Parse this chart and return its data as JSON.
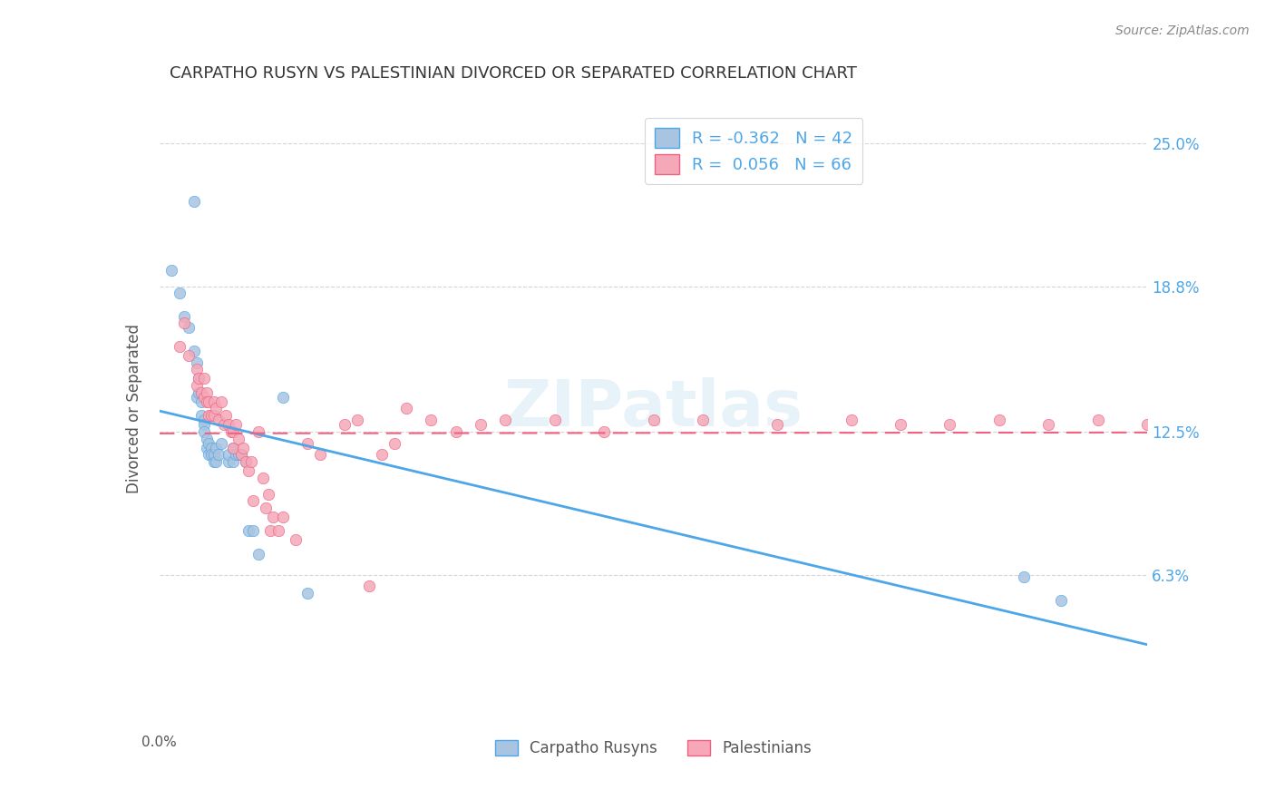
{
  "title": "CARPATHO RUSYN VS PALESTINIAN DIVORCED OR SEPARATED CORRELATION CHART",
  "source": "Source: ZipAtlas.com",
  "ylabel": "Divorced or Separated",
  "ytick_labels": [
    "25.0%",
    "18.8%",
    "12.5%",
    "6.3%"
  ],
  "ytick_values": [
    0.25,
    0.188,
    0.125,
    0.063
  ],
  "xmin": 0.0,
  "xmax": 0.4,
  "ymin": 0.0,
  "ymax": 0.27,
  "legend_blue_r": "-0.362",
  "legend_blue_n": "42",
  "legend_pink_r": "0.056",
  "legend_pink_n": "66",
  "blue_color": "#a8c4e0",
  "pink_color": "#f4a8b8",
  "line_blue": "#4da6e8",
  "line_pink": "#f06080",
  "watermark": "ZIPatlas",
  "blue_scatter_x": [
    0.005,
    0.008,
    0.01,
    0.012,
    0.014,
    0.014,
    0.015,
    0.015,
    0.016,
    0.016,
    0.017,
    0.017,
    0.018,
    0.018,
    0.018,
    0.019,
    0.019,
    0.02,
    0.02,
    0.021,
    0.021,
    0.022,
    0.022,
    0.023,
    0.023,
    0.024,
    0.025,
    0.028,
    0.028,
    0.03,
    0.03,
    0.031,
    0.032,
    0.033,
    0.035,
    0.036,
    0.038,
    0.04,
    0.05,
    0.06,
    0.35,
    0.365
  ],
  "blue_scatter_y": [
    0.195,
    0.185,
    0.175,
    0.17,
    0.225,
    0.16,
    0.155,
    0.14,
    0.148,
    0.142,
    0.138,
    0.132,
    0.13,
    0.128,
    0.125,
    0.122,
    0.118,
    0.12,
    0.115,
    0.118,
    0.115,
    0.112,
    0.115,
    0.118,
    0.112,
    0.115,
    0.12,
    0.112,
    0.115,
    0.118,
    0.112,
    0.115,
    0.115,
    0.115,
    0.112,
    0.082,
    0.082,
    0.072,
    0.14,
    0.055,
    0.062,
    0.052
  ],
  "pink_scatter_x": [
    0.008,
    0.01,
    0.012,
    0.015,
    0.015,
    0.016,
    0.017,
    0.018,
    0.018,
    0.019,
    0.019,
    0.02,
    0.02,
    0.021,
    0.022,
    0.022,
    0.023,
    0.024,
    0.025,
    0.026,
    0.027,
    0.028,
    0.029,
    0.03,
    0.03,
    0.031,
    0.032,
    0.033,
    0.034,
    0.035,
    0.036,
    0.037,
    0.038,
    0.04,
    0.042,
    0.043,
    0.044,
    0.045,
    0.046,
    0.048,
    0.05,
    0.055,
    0.06,
    0.065,
    0.075,
    0.08,
    0.085,
    0.09,
    0.095,
    0.1,
    0.11,
    0.12,
    0.13,
    0.14,
    0.16,
    0.18,
    0.2,
    0.22,
    0.25,
    0.28,
    0.3,
    0.32,
    0.34,
    0.36,
    0.38,
    0.4
  ],
  "pink_scatter_y": [
    0.162,
    0.172,
    0.158,
    0.152,
    0.145,
    0.148,
    0.142,
    0.148,
    0.14,
    0.142,
    0.138,
    0.138,
    0.132,
    0.132,
    0.138,
    0.132,
    0.135,
    0.13,
    0.138,
    0.128,
    0.132,
    0.128,
    0.125,
    0.125,
    0.118,
    0.128,
    0.122,
    0.115,
    0.118,
    0.112,
    0.108,
    0.112,
    0.095,
    0.125,
    0.105,
    0.092,
    0.098,
    0.082,
    0.088,
    0.082,
    0.088,
    0.078,
    0.12,
    0.115,
    0.128,
    0.13,
    0.058,
    0.115,
    0.12,
    0.135,
    0.13,
    0.125,
    0.128,
    0.13,
    0.13,
    0.125,
    0.13,
    0.13,
    0.128,
    0.13,
    0.128,
    0.128,
    0.13,
    0.128,
    0.13,
    0.128
  ]
}
